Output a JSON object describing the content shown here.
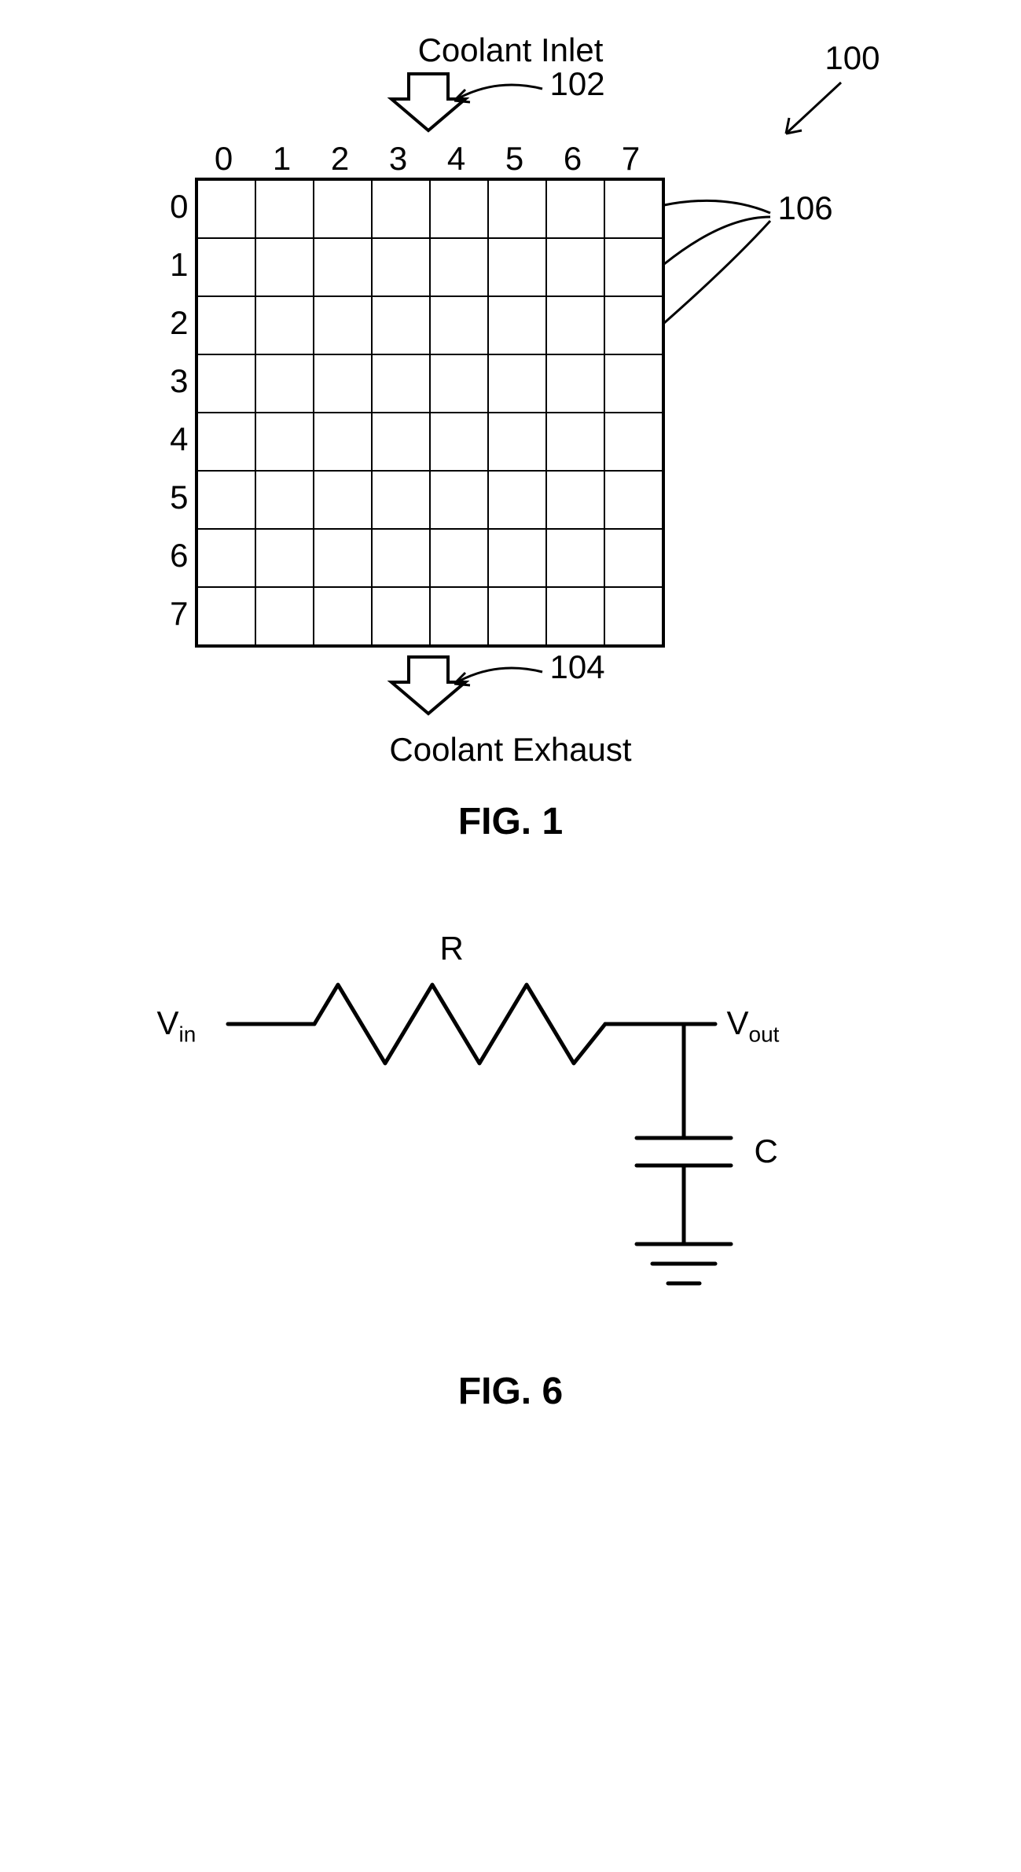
{
  "fig1": {
    "inlet_label": "Coolant Inlet",
    "exhaust_label": "Coolant Exhaust",
    "caption": "FIG. 1",
    "grid_size": 8,
    "cell_size": 74,
    "col_labels": [
      "0",
      "1",
      "2",
      "3",
      "4",
      "5",
      "6",
      "7"
    ],
    "row_labels": [
      "0",
      "1",
      "2",
      "3",
      "4",
      "5",
      "6",
      "7"
    ],
    "callouts": {
      "system": "100",
      "inlet": "102",
      "exhaust": "104",
      "cells": "106"
    },
    "stroke": "#000000",
    "stroke_width": 3,
    "arrow_stroke_width": 4,
    "font_size": 42
  },
  "fig6": {
    "caption": "FIG. 6",
    "vin": "V",
    "vin_sub": "in",
    "vout": "V",
    "vout_sub": "out",
    "r_label": "R",
    "c_label": "C",
    "stroke": "#000000",
    "stroke_width": 4,
    "font_size": 42
  }
}
